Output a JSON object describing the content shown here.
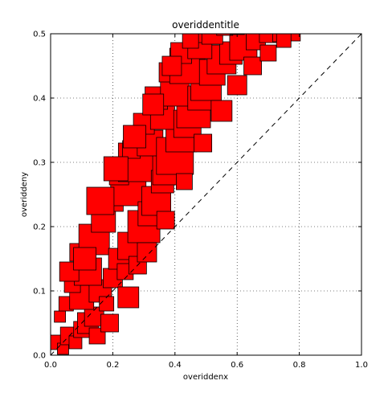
{
  "chart_data": {
    "type": "scatter",
    "marker": "square",
    "title": "overiddentitle",
    "xlabel": "overiddenx",
    "ylabel": "overiddeny",
    "xlim": [
      0.0,
      1.0
    ],
    "ylim": [
      0.0,
      0.5
    ],
    "xticks": [
      "0.0",
      "0.2",
      "0.4",
      "0.6",
      "0.8",
      "1.0"
    ],
    "yticks": [
      "0.0",
      "0.1",
      "0.2",
      "0.3",
      "0.4",
      "0.5"
    ],
    "grid": true,
    "marker_color": "#ff0000",
    "edge_color": "#000000",
    "reference_line": {
      "style": "dashed",
      "color": "#000000",
      "x": [
        0.0,
        1.0
      ],
      "y": [
        0.0,
        0.5
      ]
    },
    "series": [
      {
        "points": [
          [
            0.02,
            0.02
          ],
          [
            0.04,
            0.01
          ],
          [
            0.06,
            0.03
          ],
          [
            0.08,
            0.02
          ],
          [
            0.1,
            0.04
          ],
          [
            0.12,
            0.05
          ],
          [
            0.03,
            0.06
          ],
          [
            0.05,
            0.08
          ],
          [
            0.14,
            0.06
          ],
          [
            0.1,
            0.09
          ],
          [
            0.07,
            0.11
          ],
          [
            0.16,
            0.1
          ],
          [
            0.18,
            0.08
          ],
          [
            0.12,
            0.13
          ],
          [
            0.2,
            0.12
          ],
          [
            0.09,
            0.16
          ],
          [
            0.14,
            0.18
          ],
          [
            0.22,
            0.15
          ],
          [
            0.24,
            0.13
          ],
          [
            0.17,
            0.21
          ],
          [
            0.26,
            0.17
          ],
          [
            0.28,
            0.14
          ],
          [
            0.2,
            0.24
          ],
          [
            0.3,
            0.2
          ],
          [
            0.25,
            0.26
          ],
          [
            0.32,
            0.22
          ],
          [
            0.22,
            0.28
          ],
          [
            0.34,
            0.24
          ],
          [
            0.28,
            0.3
          ],
          [
            0.36,
            0.27
          ],
          [
            0.26,
            0.32
          ],
          [
            0.38,
            0.29
          ],
          [
            0.32,
            0.33
          ],
          [
            0.4,
            0.31
          ],
          [
            0.3,
            0.36
          ],
          [
            0.42,
            0.34
          ],
          [
            0.36,
            0.37
          ],
          [
            0.44,
            0.36
          ],
          [
            0.34,
            0.4
          ],
          [
            0.46,
            0.38
          ],
          [
            0.4,
            0.41
          ],
          [
            0.48,
            0.4
          ],
          [
            0.38,
            0.44
          ],
          [
            0.5,
            0.42
          ],
          [
            0.44,
            0.45
          ],
          [
            0.52,
            0.44
          ],
          [
            0.42,
            0.47
          ],
          [
            0.55,
            0.46
          ],
          [
            0.48,
            0.48
          ],
          [
            0.58,
            0.47
          ],
          [
            0.46,
            0.5
          ],
          [
            0.62,
            0.48
          ],
          [
            0.52,
            0.5
          ],
          [
            0.66,
            0.49
          ],
          [
            0.56,
            0.51
          ],
          [
            0.7,
            0.5
          ],
          [
            0.6,
            0.51
          ],
          [
            0.74,
            0.5
          ],
          [
            0.64,
            0.51
          ],
          [
            0.78,
            0.5
          ],
          [
            0.06,
            0.13
          ],
          [
            0.15,
            0.03
          ],
          [
            0.11,
            0.15
          ],
          [
            0.19,
            0.05
          ],
          [
            0.16,
            0.24
          ],
          [
            0.25,
            0.09
          ],
          [
            0.21,
            0.29
          ],
          [
            0.31,
            0.16
          ],
          [
            0.27,
            0.34
          ],
          [
            0.37,
            0.21
          ],
          [
            0.33,
            0.39
          ],
          [
            0.43,
            0.27
          ],
          [
            0.39,
            0.45
          ],
          [
            0.49,
            0.33
          ],
          [
            0.45,
            0.49
          ],
          [
            0.55,
            0.38
          ],
          [
            0.6,
            0.42
          ],
          [
            0.65,
            0.45
          ],
          [
            0.7,
            0.47
          ],
          [
            0.75,
            0.49
          ]
        ],
        "sizes": [
          18,
          14,
          22,
          16,
          20,
          26,
          14,
          18,
          24,
          30,
          20,
          28,
          18,
          34,
          24,
          22,
          38,
          26,
          20,
          30,
          34,
          22,
          26,
          40,
          44,
          30,
          24,
          36,
          48,
          28,
          22,
          40,
          32,
          46,
          26,
          38,
          30,
          34,
          28,
          42,
          36,
          30,
          24,
          38,
          44,
          32,
          26,
          36,
          30,
          28,
          22,
          34,
          26,
          24,
          20,
          22,
          18,
          20,
          16,
          18,
          24,
          20,
          28,
          22,
          34,
          26,
          30,
          24,
          28,
          22,
          26,
          20,
          24,
          22,
          20,
          26,
          24,
          22,
          20,
          18
        ]
      }
    ]
  }
}
